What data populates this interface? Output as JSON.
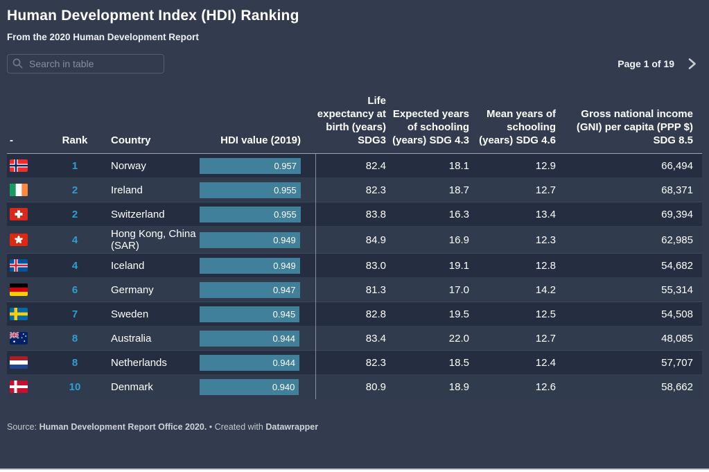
{
  "header": {
    "title": "Human Development Index (HDI) Ranking",
    "subtitle": "From the 2020 Human Development Report"
  },
  "search": {
    "placeholder": "Search in table",
    "icon": "search-icon"
  },
  "pagination": {
    "label": "Page 1 of 19",
    "next_icon": "chevron-right-icon"
  },
  "colors": {
    "rank_accent": "#2d9fd2",
    "bar": "#41809b",
    "page_background": "#323c4e",
    "row_odd": "#242e40",
    "row_even": "#303b4e"
  },
  "table": {
    "hdi_axis_max": 0.957,
    "columns": [
      {
        "key": "flag",
        "label": "-",
        "align": "left"
      },
      {
        "key": "rank",
        "label": "Rank",
        "align": "center"
      },
      {
        "key": "country",
        "label": "Country",
        "align": "left"
      },
      {
        "key": "hdi",
        "label": "HDI value (2019)",
        "align": "right"
      },
      {
        "key": "life",
        "label": "Life expectancy at birth (years) SDG3",
        "align": "right"
      },
      {
        "key": "expected",
        "label": "Expected years of schooling (years) SDG 4.3",
        "align": "right"
      },
      {
        "key": "mean",
        "label": "Mean years of schooling (years) SDG 4.6",
        "align": "right"
      },
      {
        "key": "gni",
        "label": "Gross national income (GNI) per capita (PPP $) SDG 8.5",
        "align": "right"
      }
    ],
    "rows": [
      {
        "flag": "flag-norway",
        "rank": "1",
        "country": "Norway",
        "hdi": "0.957",
        "hdi_value": 0.957,
        "life": "82.4",
        "expected": "18.1",
        "mean": "12.9",
        "gni": "66,494"
      },
      {
        "flag": "flag-ireland",
        "rank": "2",
        "country": "Ireland",
        "hdi": "0.955",
        "hdi_value": 0.955,
        "life": "82.3",
        "expected": "18.7",
        "mean": "12.7",
        "gni": "68,371"
      },
      {
        "flag": "flag-switzerland",
        "rank": "2",
        "country": "Switzerland",
        "hdi": "0.955",
        "hdi_value": 0.955,
        "life": "83.8",
        "expected": "16.3",
        "mean": "13.4",
        "gni": "69,394"
      },
      {
        "flag": "flag-hong-kong",
        "rank": "4",
        "country": "Hong Kong, China (SAR)",
        "hdi": "0.949",
        "hdi_value": 0.949,
        "life": "84.9",
        "expected": "16.9",
        "mean": "12.3",
        "gni": "62,985"
      },
      {
        "flag": "flag-iceland",
        "rank": "4",
        "country": "Iceland",
        "hdi": "0.949",
        "hdi_value": 0.949,
        "life": "83.0",
        "expected": "19.1",
        "mean": "12.8",
        "gni": "54,682"
      },
      {
        "flag": "flag-germany",
        "rank": "6",
        "country": "Germany",
        "hdi": "0.947",
        "hdi_value": 0.947,
        "life": "81.3",
        "expected": "17.0",
        "mean": "14.2",
        "gni": "55,314"
      },
      {
        "flag": "flag-sweden",
        "rank": "7",
        "country": "Sweden",
        "hdi": "0.945",
        "hdi_value": 0.945,
        "life": "82.8",
        "expected": "19.5",
        "mean": "12.5",
        "gni": "54,508"
      },
      {
        "flag": "flag-australia",
        "rank": "8",
        "country": "Australia",
        "hdi": "0.944",
        "hdi_value": 0.944,
        "life": "83.4",
        "expected": "22.0",
        "mean": "12.7",
        "gni": "48,085"
      },
      {
        "flag": "flag-netherlands",
        "rank": "8",
        "country": "Netherlands",
        "hdi": "0.944",
        "hdi_value": 0.944,
        "life": "82.3",
        "expected": "18.5",
        "mean": "12.4",
        "gni": "57,707"
      },
      {
        "flag": "flag-denmark",
        "rank": "10",
        "country": "Denmark",
        "hdi": "0.940",
        "hdi_value": 0.94,
        "life": "80.9",
        "expected": "18.9",
        "mean": "12.6",
        "gni": "58,662"
      }
    ]
  },
  "footer": {
    "source_label": "Source:",
    "source_name": "Human Development Report Office 2020.",
    "separator": "•",
    "created_label": "Created with",
    "brand": "Datawrapper"
  }
}
